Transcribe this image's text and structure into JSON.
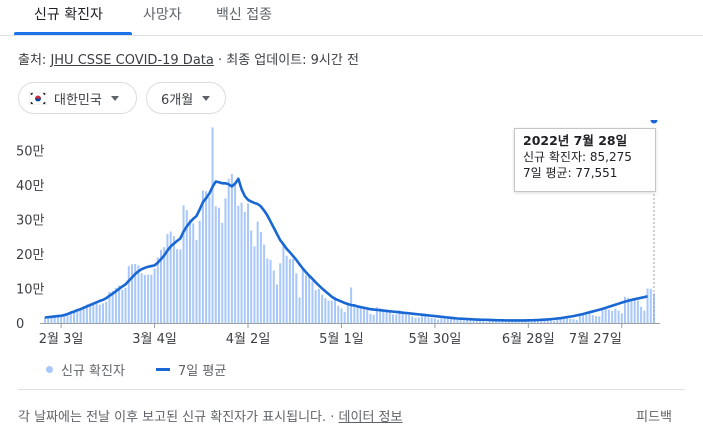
{
  "tabs": [
    {
      "label": "신규 확진자",
      "active": true
    },
    {
      "label": "사망자",
      "active": false
    },
    {
      "label": "백신 접종",
      "active": false
    }
  ],
  "source": {
    "prefix": "출처: ",
    "link": "JHU CSSE COVID-19 Data",
    "suffix": " · 최종 업데이트: 9시간 전"
  },
  "filters": {
    "country": "대한민국",
    "period": "6개월"
  },
  "tooltip": {
    "date": "2022년 7월 28일",
    "cases": "신규 확진자: 85,275",
    "avg": "7일 평균: 77,551"
  },
  "legend": {
    "bars": "신규 확진자",
    "line": "7일 평균"
  },
  "footer": {
    "note": "각 날짜에는 전날 이후 보고된 신규 확진자가 표시됩니다. · ",
    "link": "데이터 정보",
    "feedback": "피드백"
  },
  "colors": {
    "bar": "#a8c7fa",
    "line": "#1967d2",
    "accent": "#1a73e8"
  },
  "chart_data": {
    "type": "bar",
    "start_date": "2022-01-29",
    "end_date": "2022-07-28",
    "x_ticks": [
      "2월 3일",
      "3월 4일",
      "4월 2일",
      "5월 1일",
      "5월 30일",
      "6월 28일",
      "7월 27일"
    ],
    "y_ticks": [
      "0",
      "10만",
      "20만",
      "30만",
      "40만",
      "50만"
    ],
    "ylim": [
      0,
      620000
    ],
    "grid": false,
    "legend_position": "bottom-left",
    "series": [
      {
        "name": "신규 확진자",
        "type": "bar",
        "values": [
          17500,
          17000,
          17000,
          18000,
          20000,
          22000,
          24000,
          27000,
          30000,
          35000,
          36000,
          38000,
          49000,
          54000,
          57000,
          54000,
          56000,
          53000,
          57000,
          62000,
          90000,
          93000,
          102000,
          109000,
          96000,
          102000,
          165000,
          170000,
          171000,
          167000,
          144000,
          139000,
          140000,
          140000,
          158000,
          190000,
          212000,
          220000,
          258000,
          265000,
          252000,
          214000,
          213000,
          341000,
          327000,
          300000,
          289000,
          240000,
          296000,
          384000,
          382000,
          365000,
          567000,
          338000,
          334000,
          290000,
          361000,
          418000,
          432000,
          402000,
          340000,
          349000,
          322000,
          346000,
          268000,
          222000,
          294000,
          264000,
          227000,
          187000,
          183000,
          152000,
          112000,
          173000,
          229000,
          195000,
          185000,
          186000,
          144000,
          74000,
          155000,
          138000,
          137000,
          121000,
          95000,
          99000,
          82000,
          72000,
          65000,
          65000,
          76000,
          50000,
          42000,
          32000,
          58000,
          103000,
          50000,
          51000,
          47000,
          40000,
          38000,
          26000,
          24000,
          46000,
          43000,
          35000,
          35000,
          37000,
          25000,
          25000,
          37000,
          30000,
          25000,
          23000,
          19000,
          15000,
          16000,
          24000,
          20000,
          16000,
          15000,
          13000,
          10000,
          13000,
          13000,
          13000,
          12000,
          11000,
          9000,
          8000,
          7000,
          13000,
          12000,
          10000,
          9000,
          7000,
          6000,
          3000,
          10000,
          9000,
          7000,
          7000,
          6000,
          5000,
          4000,
          9000,
          9000,
          8000,
          8000,
          7000,
          6000,
          4000,
          12000,
          10000,
          9000,
          9000,
          9000,
          7000,
          6000,
          18000,
          16000,
          15000,
          16000,
          12000,
          11000,
          9000,
          28000,
          27000,
          24000,
          26000,
          23000,
          20000,
          19000,
          40000,
          41000,
          39000,
          35000,
          41000,
          36000,
          28000,
          76000,
          73000,
          68000,
          70000,
          65000,
          47000,
          36000,
          100000,
          99000,
          85275
        ]
      },
      {
        "name": "7일 평균",
        "type": "line",
        "values": [
          16000,
          17000,
          18000,
          19000,
          20000,
          21000,
          23000,
          26000,
          30000,
          33000,
          37000,
          40000,
          44000,
          48000,
          52000,
          56000,
          60000,
          64000,
          67000,
          72000,
          79000,
          85000,
          92000,
          99000,
          106000,
          112000,
          122000,
          132000,
          142000,
          150000,
          156000,
          160000,
          163000,
          165000,
          167000,
          175000,
          185000,
          196000,
          210000,
          222000,
          230000,
          238000,
          245000,
          265000,
          280000,
          292000,
          302000,
          310000,
          329000,
          350000,
          362000,
          375000,
          395000,
          410000,
          408000,
          405000,
          405000,
          402000,
          396000,
          404000,
          418000,
          388000,
          368000,
          357000,
          352000,
          348000,
          345000,
          338000,
          326000,
          312000,
          294000,
          276000,
          258000,
          240000,
          228000,
          215000,
          205000,
          194000,
          183000,
          170000,
          158000,
          147000,
          137000,
          128000,
          118000,
          109000,
          100000,
          92000,
          84000,
          76000,
          70000,
          66000,
          62000,
          58000,
          55000,
          52000,
          51000,
          48000,
          46000,
          44000,
          42000,
          40000,
          39000,
          38000,
          37000,
          36000,
          35000,
          34000,
          33000,
          32000,
          31000,
          30000,
          29000,
          28000,
          27000,
          26000,
          25000,
          24000,
          23000,
          22000,
          21000,
          20000,
          19000,
          18000,
          17000,
          16000,
          15000,
          14000,
          13000,
          12500,
          12000,
          11500,
          11000,
          10500,
          10000,
          9700,
          9400,
          9100,
          8800,
          8500,
          8200,
          8000,
          7800,
          7600,
          7500,
          7400,
          7300,
          7300,
          7400,
          7500,
          7700,
          8000,
          8300,
          8700,
          9100,
          9600,
          10200,
          11000,
          12000,
          13000,
          14000,
          15500,
          17000,
          18500,
          20000,
          22000,
          24000,
          26000,
          28500,
          31000,
          33500,
          36000,
          38500,
          41000,
          44000,
          47000,
          50000,
          53000,
          56000,
          59000,
          62000,
          64500,
          67000,
          69000,
          71000,
          73000,
          75000,
          77551
        ]
      }
    ]
  }
}
